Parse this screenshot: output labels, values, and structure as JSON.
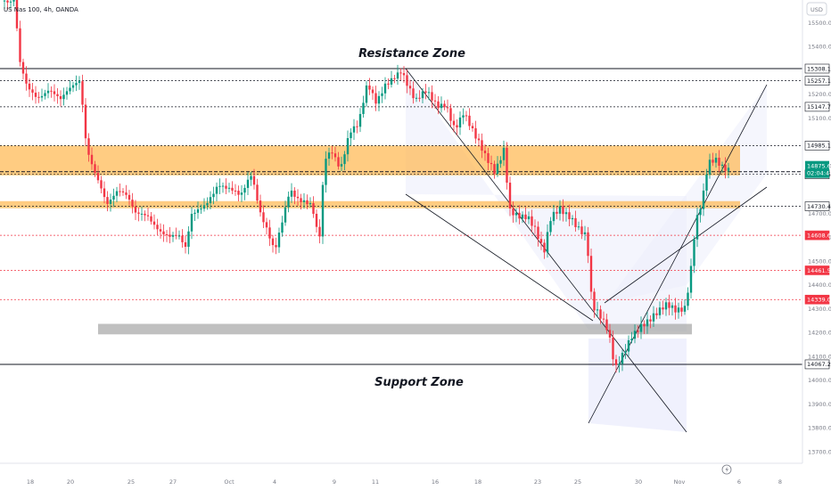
{
  "header": {
    "symbol": "US Nas 100, 4h, OANDA",
    "currency": "USD"
  },
  "chart_data": {
    "type": "candlestick",
    "annotations": {
      "resistance_label": "Resistance Zone",
      "support_label": "Support Zone"
    },
    "y_ticks": [
      15500.0,
      15400.0,
      15200.0,
      15100.0,
      14900.0,
      14700.0,
      14600.0,
      14500.0,
      14400.0,
      14300.0,
      14200.0,
      14100.0,
      14000.0,
      13900.0,
      13800.0,
      13700.0
    ],
    "x_ticks": [
      "18",
      "20",
      "25",
      "27",
      "Oct",
      "4",
      "9",
      "11",
      "16",
      "18",
      "23",
      "25",
      "30",
      "Nov",
      "6",
      "8"
    ],
    "price_levels": [
      {
        "label": "15308.1",
        "value": 15308.1,
        "style": "solid",
        "tag": "light"
      },
      {
        "label": "15257.1",
        "value": 15257.1,
        "style": "dashed",
        "tag": "light"
      },
      {
        "label": "15147.7",
        "value": 15147.7,
        "style": "dashed",
        "tag": "light"
      },
      {
        "label": "14985.1",
        "value": 14985.1,
        "style": "dashed",
        "tag": "light"
      },
      {
        "label": "14864.5",
        "value": 14864.5,
        "style": "dashed",
        "tag": "light"
      },
      {
        "label": "14730.4",
        "value": 14730.4,
        "style": "dashed",
        "tag": "light"
      },
      {
        "label": "14608.6",
        "value": 14608.6,
        "style": "red-dashed",
        "tag": "red"
      },
      {
        "label": "14461.5",
        "value": 14461.5,
        "style": "red-dashed",
        "tag": "red"
      },
      {
        "label": "14339.0",
        "value": 14339.0,
        "style": "red-dashed",
        "tag": "red"
      },
      {
        "label": "14067.2",
        "value": 14067.2,
        "style": "solid",
        "tag": "light"
      }
    ],
    "current_price": {
      "value": 14875.6,
      "label": "14875.6",
      "countdown": "02:04:47",
      "color": "#089981"
    },
    "zones": [
      {
        "name": "orange-upper",
        "from": 14860,
        "to": 14985,
        "color": "#ffb74d"
      },
      {
        "name": "orange-lower",
        "from": 14722,
        "to": 14752,
        "color": "#ffb74d"
      },
      {
        "name": "gray-demand",
        "from": 14193,
        "to": 14237,
        "color": "#9e9e9e"
      }
    ],
    "colors": {
      "up": "#089981",
      "down": "#f23645",
      "channel": "#b2b5f5"
    }
  }
}
